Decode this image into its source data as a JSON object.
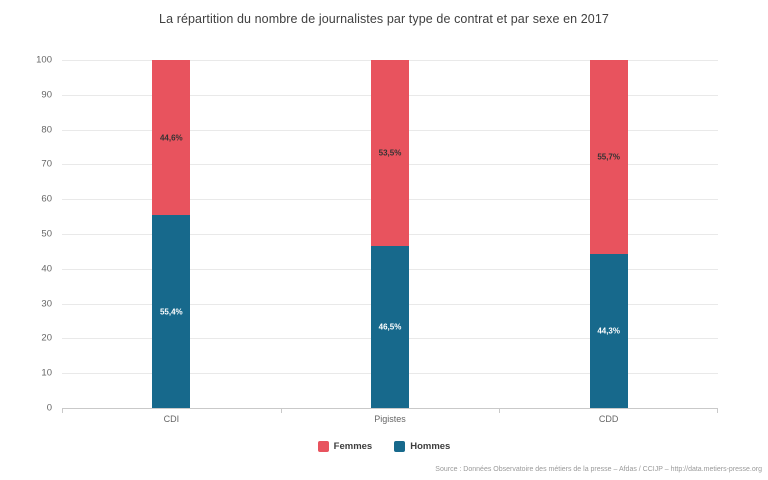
{
  "chart_data": {
    "type": "bar",
    "stacked": true,
    "title": "La répartition du nombre de journalistes par type de contrat et par sexe en 2017",
    "categories": [
      "CDI",
      "Pigistes",
      "CDD"
    ],
    "series": [
      {
        "name": "Femmes",
        "color": "#E8535E",
        "values": [
          44.6,
          53.5,
          55.7
        ],
        "value_labels": [
          "44,6%",
          "53,5%",
          "55,7%"
        ],
        "label_color": "#333333"
      },
      {
        "name": "Hommes",
        "color": "#17698C",
        "values": [
          55.4,
          46.5,
          44.3
        ],
        "value_labels": [
          "55,4%",
          "46,5%",
          "44,3%"
        ],
        "label_color": "#FFFFFF"
      }
    ],
    "stack_order_bottom_to_top": [
      "Hommes",
      "Femmes"
    ],
    "ylim": [
      0,
      100
    ],
    "yticks": [
      0,
      10,
      20,
      30,
      40,
      50,
      60,
      70,
      80,
      90,
      100
    ],
    "grid": true,
    "legend_position": "bottom-center",
    "colors": {
      "grid": "#E9E9E9",
      "axis": "#C9C9C9",
      "tick_label": "#666666",
      "title": "#404040"
    }
  },
  "source": {
    "text": "Source : Données Observatoire des métiers de la presse – Afdas / CCIJP – http://data.metiers-presse.org"
  }
}
